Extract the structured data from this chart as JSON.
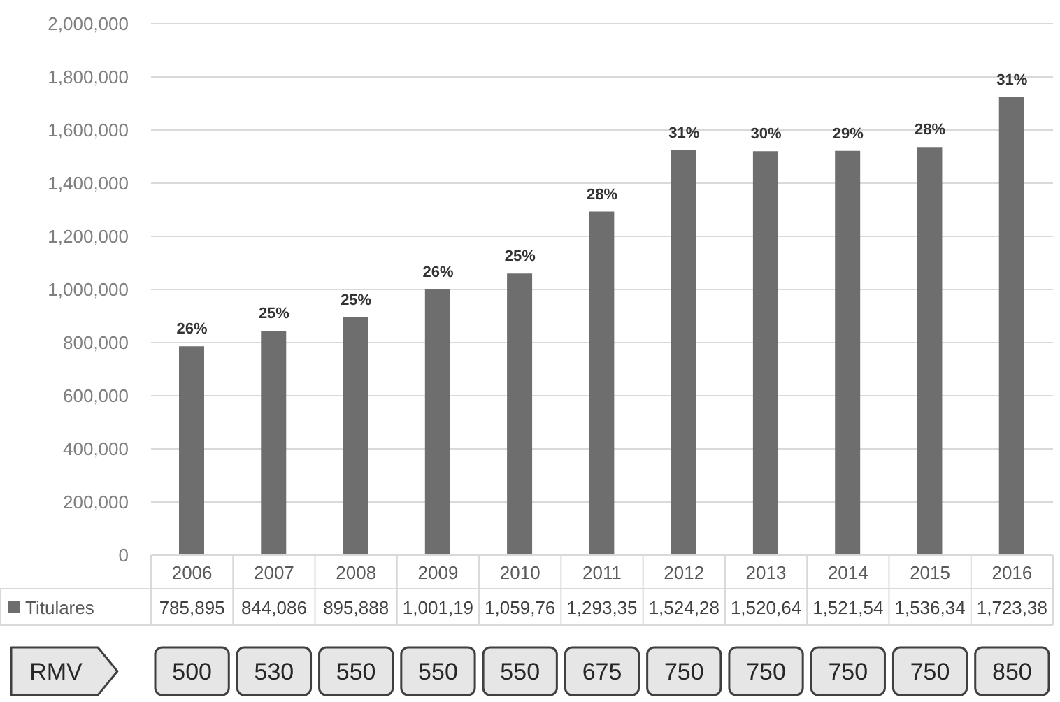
{
  "chart_data": {
    "type": "bar",
    "categories": [
      "2006",
      "2007",
      "2008",
      "2009",
      "2010",
      "2011",
      "2012",
      "2013",
      "2014",
      "2015",
      "2016"
    ],
    "series": [
      {
        "name": "Titulares",
        "color": "#6e6e6e",
        "values": [
          785895,
          844086,
          895888,
          1001190,
          1059760,
          1293350,
          1524280,
          1520640,
          1521540,
          1536340,
          1723380
        ],
        "value_labels": [
          "785,895",
          "844,086",
          "895,888",
          "1,001,19",
          "1,059,76",
          "1,293,35",
          "1,524,28",
          "1,520,64",
          "1,521,54",
          "1,536,34",
          "1,723,38"
        ]
      }
    ],
    "ylim": [
      0,
      2000000
    ],
    "yticks": [
      0,
      {
        "value": 200000,
        "label": "200,000"
      },
      {
        "value": 400000,
        "label": "400,000"
      },
      {
        "value": 600000,
        "label": "600,000"
      },
      {
        "value": 800000,
        "label": "800,000"
      },
      {
        "value": 1000000,
        "label": "1,000,000"
      },
      {
        "value": 1200000,
        "label": "1,200,000"
      },
      {
        "value": 1400000,
        "label": "1,400,000"
      },
      {
        "value": 1600000,
        "label": "1,600,000"
      },
      {
        "value": 1800000,
        "label": "1,800,000"
      },
      {
        "value": 2000000,
        "label": "2,000,000"
      }
    ],
    "grid": "y",
    "legend": "bottom",
    "annotations": [
      {
        "text": "26%",
        "x": "2006",
        "y": 785895
      },
      {
        "text": "25%",
        "x": "2007",
        "y": 844086
      },
      {
        "text": "25%",
        "x": "2008",
        "y": 895888
      },
      {
        "text": "26%",
        "x": "2009",
        "y": 1001190
      },
      {
        "text": "25%",
        "x": "2010",
        "y": 1059760
      },
      {
        "text": "28%",
        "x": "2011",
        "y": 1293350
      },
      {
        "text": "31%",
        "x": "2012",
        "y": 1524280
      },
      {
        "text": "30%",
        "x": "2013",
        "y": 1520640
      },
      {
        "text": "29%",
        "x": "2014",
        "y": 1521540
      },
      {
        "text": "28%",
        "x": "2015",
        "y": 1536340
      },
      {
        "text": "31%",
        "x": "2016",
        "y": 1723380
      },
      "RMV",
      "500",
      "530",
      "550",
      "550",
      "550",
      "675",
      "750",
      "750",
      "750",
      "750",
      "850"
    ]
  }
}
